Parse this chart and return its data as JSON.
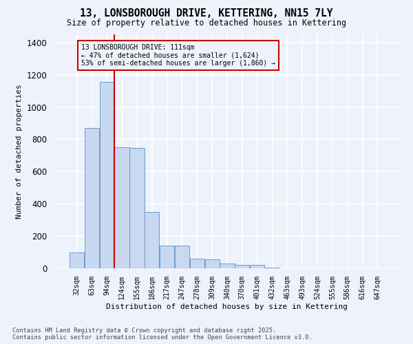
{
  "title_line1": "13, LONSBOROUGH DRIVE, KETTERING, NN15 7LY",
  "title_line2": "Size of property relative to detached houses in Kettering",
  "xlabel": "Distribution of detached houses by size in Kettering",
  "ylabel": "Number of detached properties",
  "categories": [
    "32sqm",
    "63sqm",
    "94sqm",
    "124sqm",
    "155sqm",
    "186sqm",
    "217sqm",
    "247sqm",
    "278sqm",
    "309sqm",
    "340sqm",
    "370sqm",
    "401sqm",
    "432sqm",
    "463sqm",
    "493sqm",
    "524sqm",
    "555sqm",
    "586sqm",
    "616sqm",
    "647sqm"
  ],
  "values": [
    100,
    870,
    1155,
    750,
    745,
    350,
    140,
    140,
    60,
    55,
    30,
    20,
    20,
    5,
    0,
    0,
    0,
    0,
    0,
    0,
    0
  ],
  "bar_color": "#c8d8f0",
  "bar_edge_color": "#5b8fc9",
  "vline_x": 2.5,
  "vline_color": "#cc0000",
  "annotation_text": "13 LONSBOROUGH DRIVE: 111sqm\n← 47% of detached houses are smaller (1,624)\n53% of semi-detached houses are larger (1,860) →",
  "annotation_box_color": "#cc0000",
  "ylim": [
    0,
    1450
  ],
  "yticks": [
    0,
    200,
    400,
    600,
    800,
    1000,
    1200,
    1400
  ],
  "background_color": "#eef3fb",
  "grid_color": "#ffffff",
  "footer_line1": "Contains HM Land Registry data © Crown copyright and database right 2025.",
  "footer_line2": "Contains public sector information licensed under the Open Government Licence v3.0."
}
